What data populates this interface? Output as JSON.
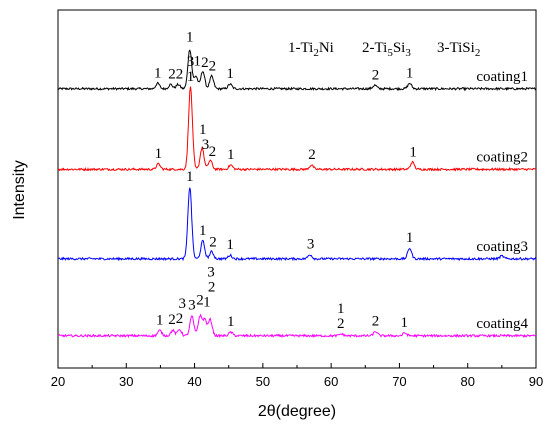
{
  "chart_data": {
    "type": "line",
    "xlabel": "2θ(degree)",
    "ylabel": "Intensity",
    "xlim": [
      20,
      90
    ],
    "x_ticks": [
      "20",
      "30",
      "40",
      "50",
      "60",
      "70",
      "80",
      "90"
    ],
    "legend": {
      "entry1": {
        "num": "1-Ti",
        "sub1": "2",
        "rest": "Ni"
      },
      "entry2": {
        "num": "2-Ti",
        "sub1": "5",
        "mid": "Si",
        "sub2": "3"
      },
      "entry3": {
        "num": "3-TiSi",
        "sub1": "2"
      }
    },
    "series": [
      {
        "name": "coating1",
        "color": "#000000",
        "baseline": 0.78,
        "peaks": [
          [
            34.6,
            0.015
          ],
          [
            36.5,
            0.012
          ],
          [
            37.6,
            0.012
          ],
          [
            39.3,
            0.11
          ],
          [
            40.2,
            0.035
          ],
          [
            41.2,
            0.05
          ],
          [
            42.5,
            0.035
          ],
          [
            45.2,
            0.013
          ],
          [
            66.4,
            0.01
          ],
          [
            71.5,
            0.015
          ]
        ],
        "peak_labels": [
          {
            "x": 34.6,
            "text": "1"
          },
          {
            "x": 36.7,
            "text": "2"
          },
          {
            "x": 37.8,
            "text": "2"
          },
          {
            "x": 39.3,
            "text": "1"
          },
          {
            "x": 40.4,
            "text": "1"
          },
          {
            "x": 41.5,
            "text": "2"
          },
          {
            "x": 42.6,
            "text": "2"
          },
          {
            "x": 45.2,
            "text": "1"
          },
          {
            "x": 66.5,
            "text": "2"
          },
          {
            "x": 71.5,
            "text": "1"
          }
        ]
      },
      {
        "name": "coating2",
        "color": "#ff0000",
        "baseline": 0.555,
        "peaks": [
          [
            34.7,
            0.015
          ],
          [
            39.4,
            0.23
          ],
          [
            41.1,
            0.06
          ],
          [
            42.3,
            0.025
          ],
          [
            45.3,
            0.012
          ],
          [
            57.1,
            0.012
          ],
          [
            71.9,
            0.02
          ]
        ],
        "peak_labels": [
          {
            "x": 34.7,
            "text": "1"
          },
          {
            "x": 39.4,
            "text": "1"
          },
          {
            "x": 41.6,
            "text": "3"
          },
          {
            "x": 39.4,
            "text": "3"
          },
          {
            "x": 41.2,
            "text": "1"
          },
          {
            "x": 42.6,
            "text": "2"
          },
          {
            "x": 45.3,
            "text": "1"
          },
          {
            "x": 57.2,
            "text": "2"
          },
          {
            "x": 72.0,
            "text": "1"
          }
        ]
      },
      {
        "name": "coating3",
        "color": "#0000ff",
        "baseline": 0.305,
        "peaks": [
          [
            39.3,
            0.2
          ],
          [
            41.2,
            0.05
          ],
          [
            42.5,
            0.02
          ],
          [
            45.2,
            0.01
          ],
          [
            56.9,
            0.012
          ],
          [
            71.5,
            0.03
          ],
          [
            85.0,
            0.008
          ]
        ],
        "peak_labels": [
          {
            "x": 39.3,
            "text": "1"
          },
          {
            "x": 41.2,
            "text": "1"
          },
          {
            "x": 42.7,
            "text": "2"
          },
          {
            "x": 45.2,
            "text": "1"
          },
          {
            "x": 57.0,
            "text": "3"
          },
          {
            "x": 71.5,
            "text": "1"
          }
        ]
      },
      {
        "name": "coating4",
        "color": "#ff00ff",
        "baseline": 0.09,
        "peaks": [
          [
            34.9,
            0.015
          ],
          [
            36.8,
            0.015
          ],
          [
            37.8,
            0.018
          ],
          [
            39.6,
            0.055
          ],
          [
            40.8,
            0.055
          ],
          [
            41.5,
            0.045
          ],
          [
            42.3,
            0.045
          ],
          [
            45.3,
            0.01
          ],
          [
            61.5,
            0.005
          ],
          [
            66.5,
            0.012
          ],
          [
            70.8,
            0.008
          ]
        ],
        "peak_labels": [
          {
            "x": 34.9,
            "text": "1"
          },
          {
            "x": 36.7,
            "text": "2"
          },
          {
            "x": 37.8,
            "text": "2"
          },
          {
            "x": 38.2,
            "text": "3"
          },
          {
            "x": 39.6,
            "text": "3"
          },
          {
            "x": 40.8,
            "text": "2"
          },
          {
            "x": 41.8,
            "text": "1"
          },
          {
            "x": 42.5,
            "text": "2"
          },
          {
            "x": 42.4,
            "text": "3"
          },
          {
            "x": 45.3,
            "text": "1"
          },
          {
            "x": 61.4,
            "text": "2"
          },
          {
            "x": 61.4,
            "text": "1"
          },
          {
            "x": 66.5,
            "text": "2"
          },
          {
            "x": 70.7,
            "text": "1"
          }
        ]
      }
    ]
  }
}
